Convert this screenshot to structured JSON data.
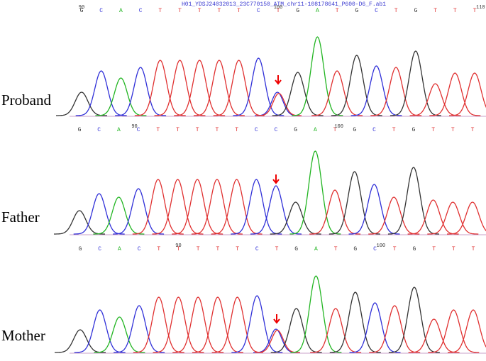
{
  "file_name": "H01_YDSJ24032013_23C770150_ATM_chr11-108178641_P600-D6_F.ab1",
  "panels": [
    {
      "label": "Proband",
      "bases": [
        "G",
        "C",
        "A",
        "C",
        "T",
        "T",
        "T",
        "T",
        "T",
        "C",
        "T",
        "G",
        "A",
        "T",
        "G",
        "C",
        "T",
        "G",
        "T",
        "T",
        "T"
      ],
      "ruler": [
        "90",
        "100",
        "110"
      ]
    },
    {
      "label": "Father",
      "bases": [
        "G",
        "C",
        "A",
        "C",
        "T",
        "T",
        "T",
        "T",
        "T",
        "C",
        "C",
        "G",
        "A",
        "T",
        "G",
        "C",
        "T",
        "G",
        "T",
        "T",
        "T"
      ],
      "ruler": [
        "90",
        "100"
      ]
    },
    {
      "label": "Mother",
      "bases": [
        "G",
        "C",
        "A",
        "C",
        "T",
        "T",
        "T",
        "T",
        "T",
        "C",
        "T",
        "G",
        "A",
        "T",
        "G",
        "C",
        "T",
        "G",
        "T",
        "T",
        "T"
      ],
      "ruler": [
        "90",
        "100"
      ]
    }
  ]
}
